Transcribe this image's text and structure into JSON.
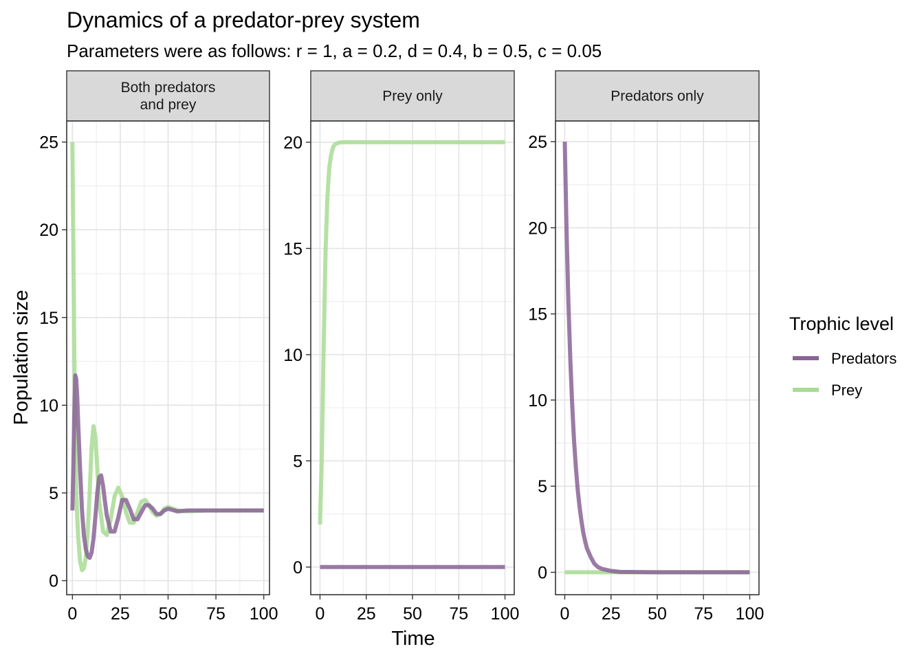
{
  "chart_data": {
    "type": "line",
    "title": "Dynamics of a predator-prey system",
    "subtitle": "Parameters were as follows: r = 1, a = 0.2, d = 0.4, b = 0.5, c = 0.05",
    "xlabel": "Time",
    "ylabel": "Population size",
    "legend": {
      "title": "Trophic level",
      "placement": "right",
      "entries": [
        {
          "name": "Predators",
          "color": "#8a6496"
        },
        {
          "name": "Prey",
          "color": "#a8dc94"
        }
      ]
    },
    "grid": true,
    "facets": [
      {
        "strip": [
          "Both predators",
          "and prey"
        ],
        "xlim": [
          -3,
          103
        ],
        "ylim": [
          -0.8,
          26.2
        ],
        "xticks": [
          "0",
          "25",
          "50",
          "75",
          "100"
        ],
        "yticks": [
          "0",
          "5",
          "10",
          "15",
          "20",
          "25"
        ],
        "series": [
          {
            "name": "Prey",
            "x": [
              0,
              0.5,
              1,
              1.5,
              2,
              3,
              4,
              5,
              6,
              7,
              8,
              9,
              10,
              11,
              12,
              13,
              14,
              16,
              18,
              20,
              22,
              24,
              26,
              28,
              30,
              32,
              34,
              36,
              38,
              40,
              42,
              44,
              46,
              48,
              50,
              55,
              60,
              70,
              80,
              90,
              100
            ],
            "y": [
              25,
              19,
              13,
              8,
              5,
              2.5,
              1.1,
              0.6,
              0.7,
              1.3,
              2.8,
              5,
              7.6,
              8.8,
              8.2,
              6.4,
              4.5,
              2.8,
              2.6,
              3.5,
              4.8,
              5.3,
              4.8,
              3.9,
              3.3,
              3.3,
              3.9,
              4.5,
              4.6,
              4.3,
              3.9,
              3.7,
              3.8,
              4.1,
              4.2,
              4.0,
              3.95,
              4,
              4,
              4,
              4
            ]
          },
          {
            "name": "Predators",
            "x": [
              0,
              0.5,
              1,
              1.5,
              2,
              2.5,
              3,
              4,
              5,
              6,
              7,
              8,
              9,
              10,
              11,
              12,
              13,
              14,
              15,
              16,
              17,
              18,
              20,
              22,
              24,
              26,
              28,
              30,
              32,
              34,
              36,
              38,
              40,
              42,
              44,
              46,
              48,
              50,
              55,
              60,
              70,
              80,
              90,
              100
            ],
            "y": [
              4,
              6.5,
              9.5,
              11.7,
              11.5,
              10.5,
              9,
              6.3,
              4,
              2.6,
              1.8,
              1.4,
              1.3,
              1.6,
              2.4,
              3.6,
              5,
              5.9,
              6,
              5.4,
              4.5,
              3.7,
              2.8,
              2.8,
              3.6,
              4.6,
              4.6,
              4.1,
              3.5,
              3.5,
              3.9,
              4.3,
              4.3,
              4.1,
              3.8,
              3.8,
              4.0,
              4.1,
              3.95,
              4,
              4,
              4,
              4,
              4
            ]
          }
        ]
      },
      {
        "strip": [
          "Prey only"
        ],
        "xlim": [
          -5,
          105
        ],
        "ylim": [
          -1.3,
          21
        ],
        "xticks": [
          "0",
          "25",
          "50",
          "75",
          "100"
        ],
        "yticks": [
          "0",
          "5",
          "10",
          "15",
          "20"
        ],
        "series": [
          {
            "name": "Predators",
            "x": [
              0,
              100
            ],
            "y": [
              0,
              0
            ]
          },
          {
            "name": "Prey",
            "x": [
              0,
              1,
              2,
              3,
              4,
              5,
              6,
              7,
              8,
              10,
              12,
              15,
              20,
              30,
              50,
              100
            ],
            "y": [
              2,
              5.2,
              10.4,
              14.8,
              17.4,
              18.8,
              19.4,
              19.75,
              19.9,
              19.98,
              20,
              20,
              20,
              20,
              20,
              20
            ]
          }
        ]
      },
      {
        "strip": [
          "Predators only"
        ],
        "xlim": [
          -5,
          105
        ],
        "ylim": [
          -1.3,
          26.2
        ],
        "xticks": [
          "0",
          "25",
          "50",
          "75",
          "100"
        ],
        "yticks": [
          "0",
          "5",
          "10",
          "15",
          "20",
          "25"
        ],
        "series": [
          {
            "name": "Prey",
            "x": [
              0,
              100
            ],
            "y": [
              0,
              0
            ]
          },
          {
            "name": "Predators",
            "x": [
              0,
              1,
              2,
              3,
              4,
              5,
              6,
              7,
              8,
              9,
              10,
              11,
              12,
              14,
              16,
              18,
              20,
              25,
              30,
              50,
              100
            ],
            "y": [
              25,
              19.8,
              15.6,
              12.4,
              9.8,
              7.7,
              6.1,
              4.8,
              3.8,
              3.0,
              2.3,
              1.8,
              1.4,
              0.9,
              0.5,
              0.3,
              0.2,
              0.08,
              0.02,
              0,
              0
            ]
          }
        ]
      }
    ]
  }
}
